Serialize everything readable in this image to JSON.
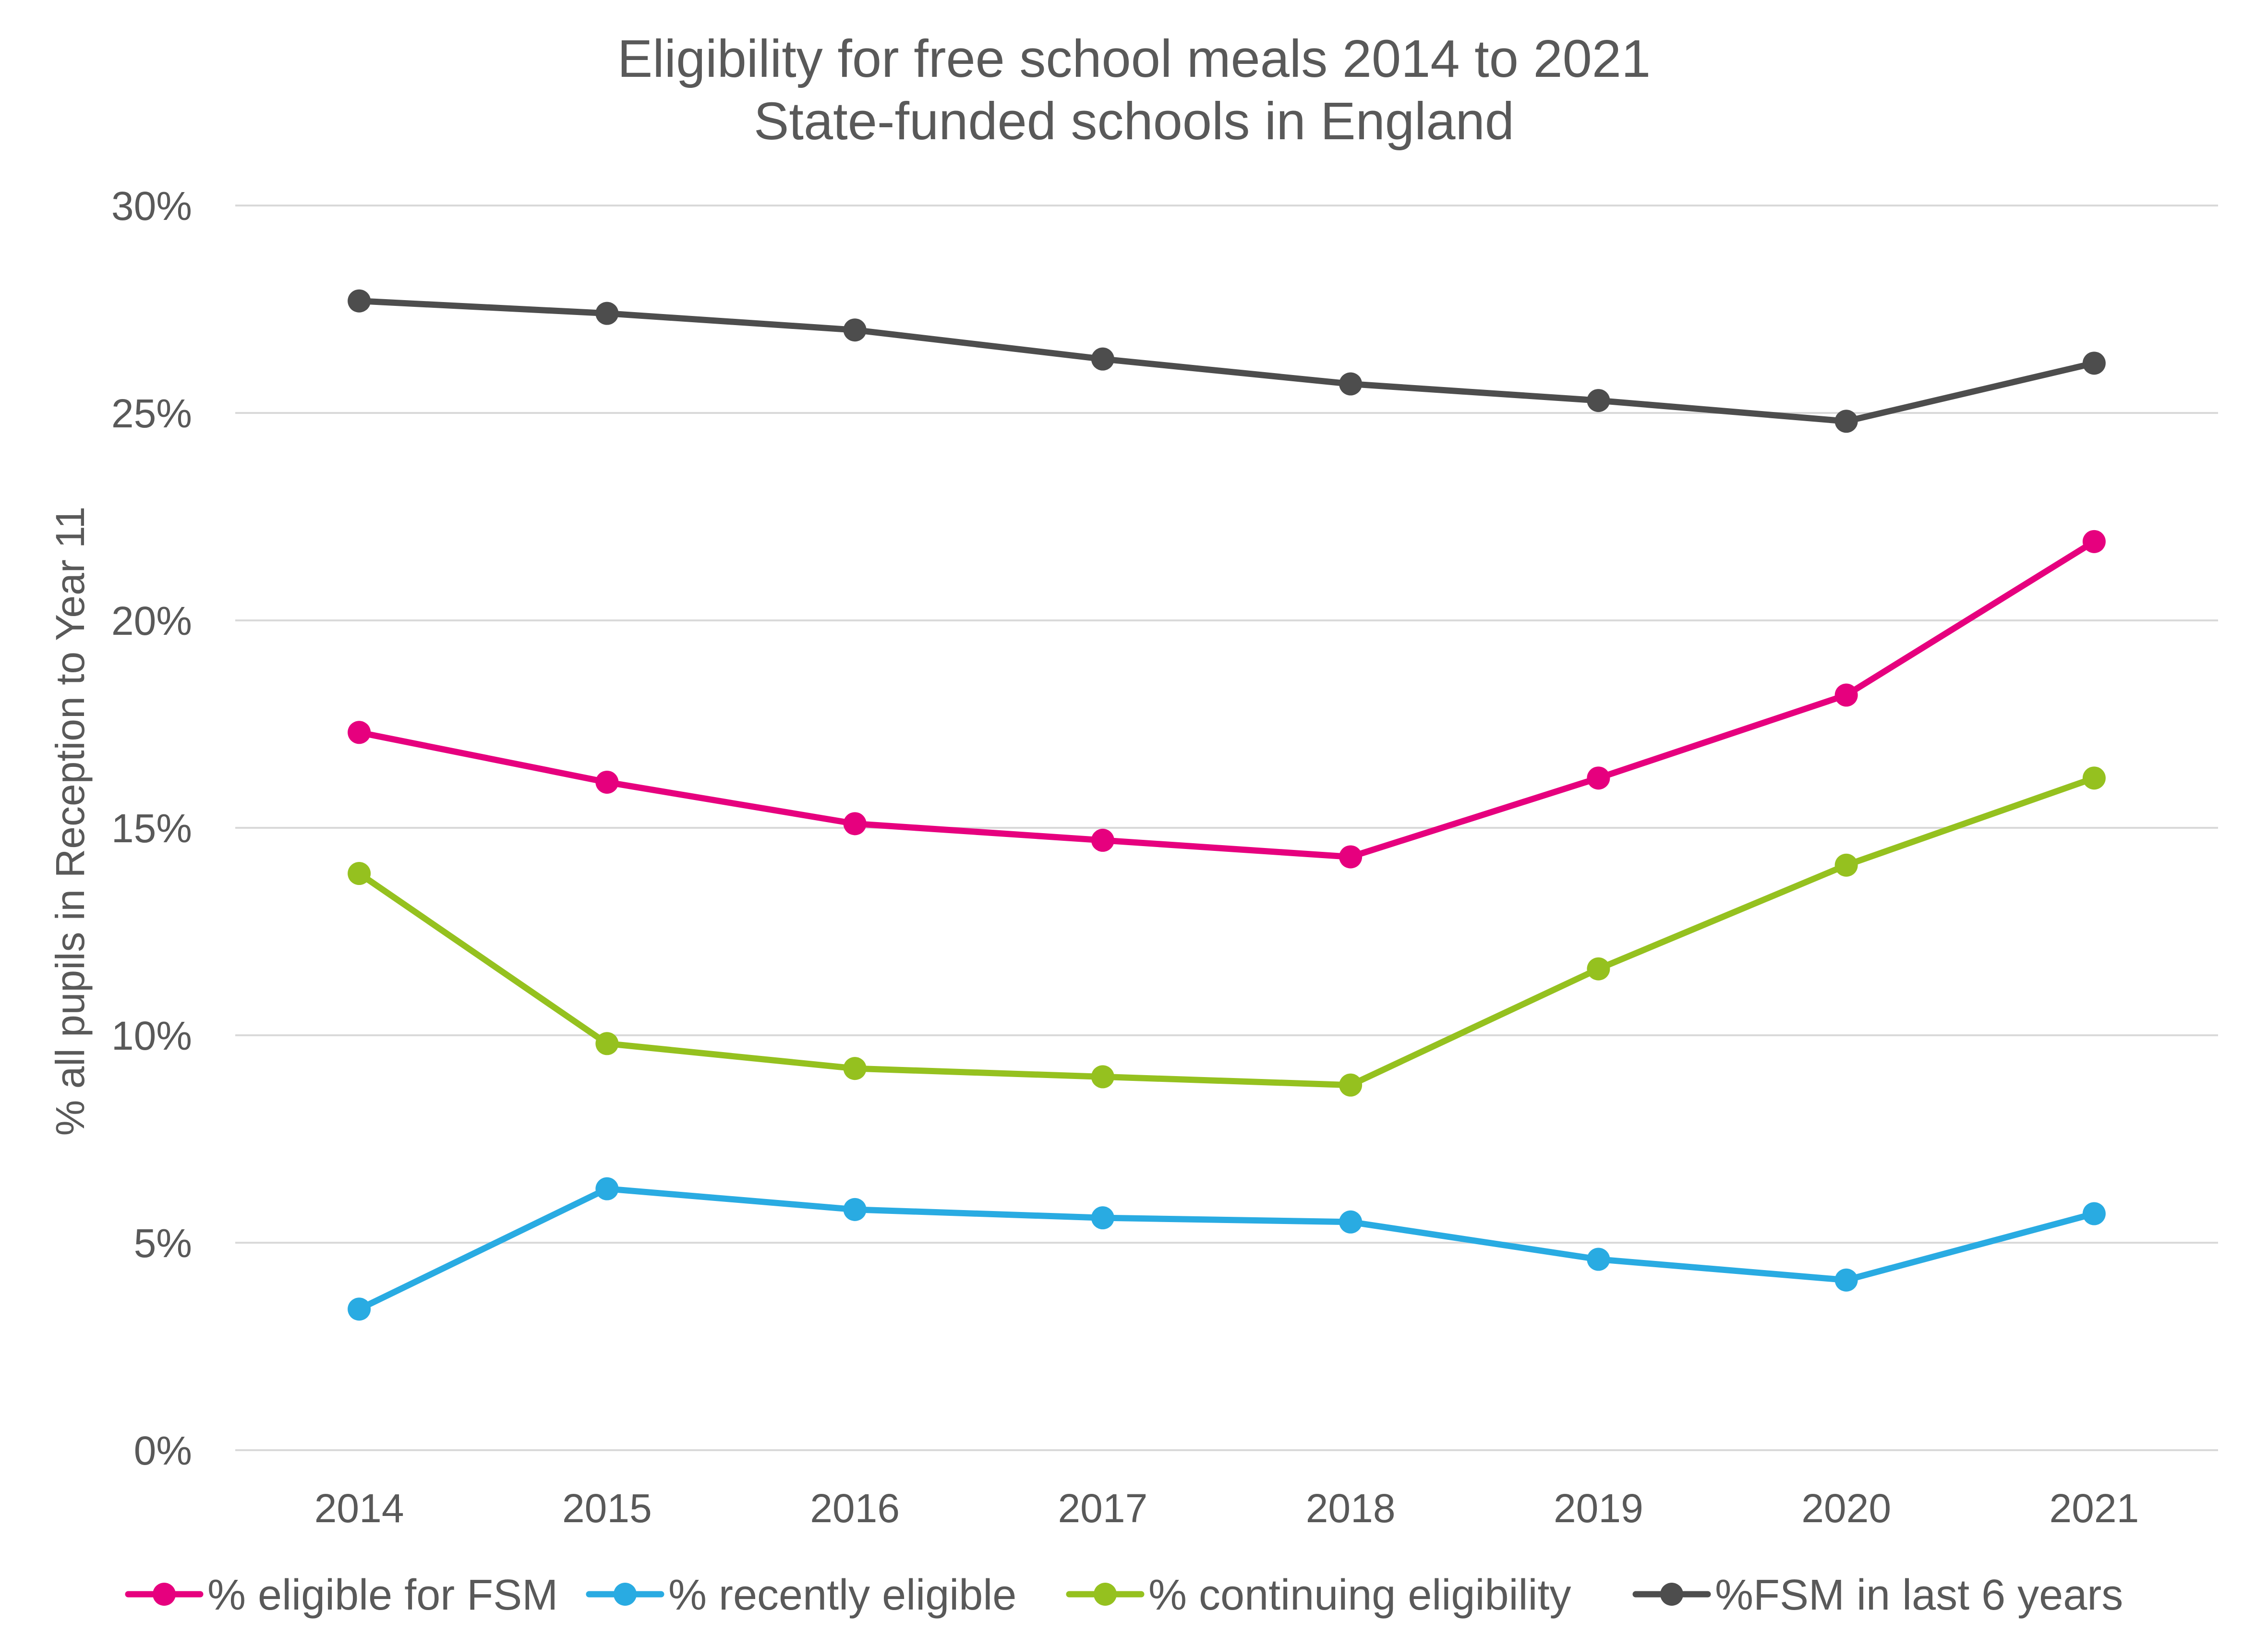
{
  "chart_data": {
    "type": "line",
    "title": "Eligibility for free school meals 2014 to 2021",
    "subtitle": "State-funded schools in England",
    "xlabel": "",
    "ylabel": "% all pupils in Reception to Year 11",
    "categories": [
      "2014",
      "2015",
      "2016",
      "2017",
      "2018",
      "2019",
      "2020",
      "2021"
    ],
    "ylim": [
      0,
      30
    ],
    "yticks": [
      0,
      5,
      10,
      15,
      20,
      25,
      30
    ],
    "ytick_labels": [
      "0%",
      "5%",
      "10%",
      "15%",
      "20%",
      "25%",
      "30%"
    ],
    "grid": true,
    "legend_position": "bottom",
    "series": [
      {
        "name": "% eligible for FSM",
        "color": "#e6007e",
        "values": [
          17.3,
          16.1,
          15.1,
          14.7,
          14.3,
          16.2,
          18.2,
          21.9
        ]
      },
      {
        "name": "% recently eligible",
        "color": "#29abe2",
        "values": [
          3.4,
          6.3,
          5.8,
          5.6,
          5.5,
          4.6,
          4.1,
          5.7
        ]
      },
      {
        "name": "% continuing eligibility",
        "color": "#95c11f",
        "values": [
          13.9,
          9.8,
          9.2,
          9.0,
          8.8,
          11.6,
          14.1,
          16.2
        ]
      },
      {
        "name": "%FSM in last 6 years",
        "color": "#4d4d4d",
        "values": [
          27.7,
          27.4,
          27.0,
          26.3,
          25.7,
          25.3,
          24.8,
          26.2
        ]
      }
    ]
  }
}
